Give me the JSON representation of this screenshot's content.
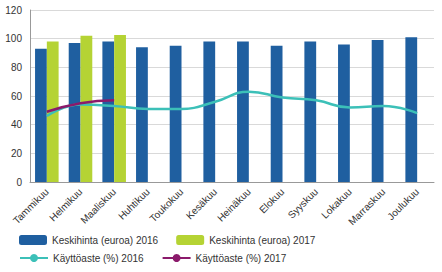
{
  "chart_data": {
    "type": "bar",
    "categories": [
      "Tammikuu",
      "Helmikuu",
      "Maaliskuu",
      "Huhtikuu",
      "Toukokuu",
      "Kesäkuu",
      "Heinäkuu",
      "Elokuu",
      "Syyskuu",
      "Lokakuu",
      "Marraskuu",
      "Joulukuu"
    ],
    "series": [
      {
        "name": "Keskihinta (euroa) 2016",
        "type": "bar",
        "color": "#1f5fa0",
        "values": [
          93,
          97,
          98,
          94,
          95,
          98,
          98,
          95,
          98,
          96,
          99,
          101
        ]
      },
      {
        "name": "Keskihinta (euroa) 2017",
        "type": "bar",
        "color": "#b5d334",
        "values": [
          98,
          102,
          102.5,
          null,
          null,
          null,
          null,
          null,
          null,
          null,
          null,
          null
        ]
      },
      {
        "name": "Käyttöaste (%) 2016",
        "type": "line",
        "color": "#3cc0b8",
        "values": [
          46,
          54,
          53,
          51,
          51,
          56,
          63,
          59,
          57,
          52,
          53,
          48
        ]
      },
      {
        "name": "Käyttöaste (%) 2017",
        "type": "line",
        "color": "#8b1a6b",
        "values": [
          49,
          55,
          57,
          null,
          null,
          null,
          null,
          null,
          null,
          null,
          null,
          null
        ]
      }
    ],
    "ylim": [
      0,
      120
    ],
    "yticks": [
      0,
      20,
      40,
      60,
      80,
      100,
      120
    ],
    "grid": true,
    "legend": "bottom"
  }
}
